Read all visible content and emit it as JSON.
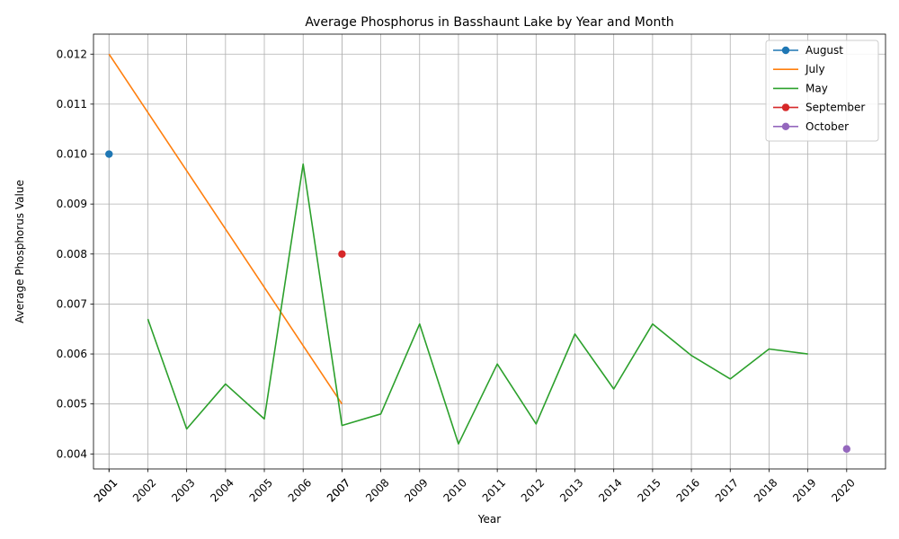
{
  "chart_data": {
    "type": "line",
    "title": "Average Phosphorus in Basshaunt Lake by Year and Month",
    "xlabel": "Year",
    "ylabel": "Average Phosphorus Value",
    "x_ticks": [
      "2001",
      "2001",
      "2002",
      "2003",
      "2004",
      "2005",
      "2006",
      "2007",
      "2007",
      "2008",
      "2009",
      "2010",
      "2011",
      "2012",
      "2013",
      "2014",
      "2015",
      "2016",
      "2017",
      "2018",
      "2019",
      "2020"
    ],
    "y_ticks": [
      "0.004",
      "0.005",
      "0.006",
      "0.007",
      "0.008",
      "0.009",
      "0.010",
      "0.011",
      "0.012"
    ],
    "xlim": [
      2000.6,
      2021
    ],
    "ylim": [
      0.0037,
      0.0124
    ],
    "grid": true,
    "legend_position": "top-right",
    "series": [
      {
        "name": "August",
        "color": "#1f77b4",
        "marker": true,
        "x": [
          2001
        ],
        "y": [
          0.01
        ]
      },
      {
        "name": "July",
        "color": "#ff7f0e",
        "marker": false,
        "x": [
          2001,
          2007
        ],
        "y": [
          0.012,
          0.005
        ]
      },
      {
        "name": "May",
        "color": "#2ca02c",
        "marker": false,
        "x": [
          2002,
          2003,
          2004,
          2005,
          2006,
          2007,
          2008,
          2009,
          2010,
          2011,
          2012,
          2013,
          2014,
          2015,
          2016,
          2017,
          2018,
          2019
        ],
        "y": [
          0.0067,
          0.0045,
          0.0054,
          0.0047,
          0.0098,
          0.00457,
          0.0048,
          0.0066,
          0.0042,
          0.0058,
          0.0046,
          0.0064,
          0.0053,
          0.0066,
          0.00597,
          0.0055,
          0.0061,
          0.006
        ]
      },
      {
        "name": "September",
        "color": "#d62728",
        "marker": true,
        "x": [
          2007
        ],
        "y": [
          0.008
        ]
      },
      {
        "name": "October",
        "color": "#9467bd",
        "marker": true,
        "x": [
          2020
        ],
        "y": [
          0.0041
        ]
      }
    ]
  }
}
